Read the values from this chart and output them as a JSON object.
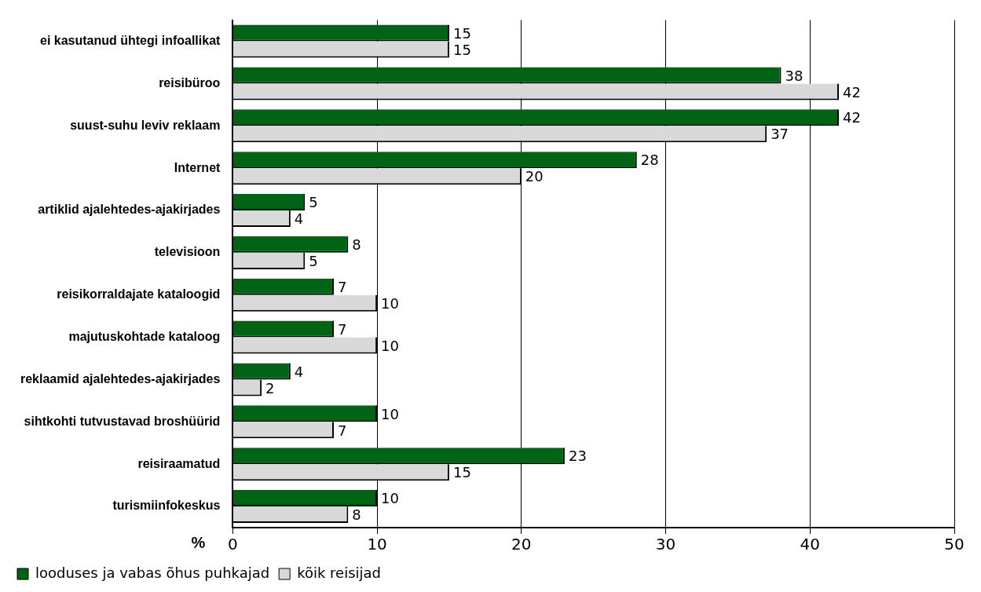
{
  "chart_data": {
    "type": "bar",
    "orientation": "horizontal",
    "xlabel": "%",
    "categories": [
      "ei kasutanud ühtegi infoallikat",
      "reisibüroo",
      "suust-suhu leviv reklaam",
      "Internet",
      "artiklid ajalehtedes-ajakirjades",
      "televisioon",
      "reisikorraldajate kataloogid",
      "majutuskohtade kataloog",
      "reklaamid ajalehtedes-ajakirjades",
      "sihtkohti tutvustavad broshüürid",
      "reisiraamatud",
      "turismiinfokeskus"
    ],
    "series": [
      {
        "name": "looduses ja vabas õhus puhkajad",
        "color": "#006414",
        "values": [
          15,
          38,
          42,
          28,
          5,
          8,
          7,
          7,
          4,
          10,
          23,
          10
        ]
      },
      {
        "name": "kõik reisijad",
        "color": "#d9d9d9",
        "values": [
          15,
          42,
          37,
          20,
          4,
          5,
          10,
          10,
          2,
          7,
          15,
          8
        ]
      }
    ],
    "xlim": [
      0,
      50
    ],
    "xticks": [
      0,
      10,
      20,
      30,
      40,
      50
    ],
    "grid": "x",
    "legend": "bottom",
    "data_labels": true
  }
}
